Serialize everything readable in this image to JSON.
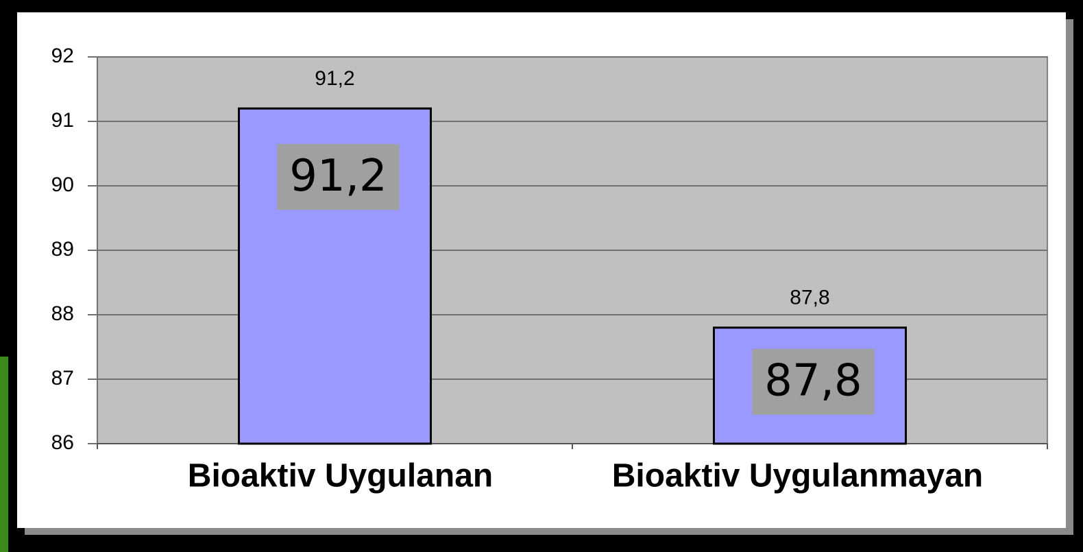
{
  "chart_data": {
    "type": "bar",
    "categories": [
      "Bioaktiv Uygulanan",
      "Bioaktiv Uygulanmayan"
    ],
    "values": [
      91.2,
      87.8
    ],
    "value_labels": [
      "91,2",
      "87,8"
    ],
    "color": "#9999ff",
    "ylim": [
      86,
      92
    ],
    "yticks": [
      86,
      87,
      88,
      89,
      90,
      91,
      92
    ],
    "grid": true
  }
}
